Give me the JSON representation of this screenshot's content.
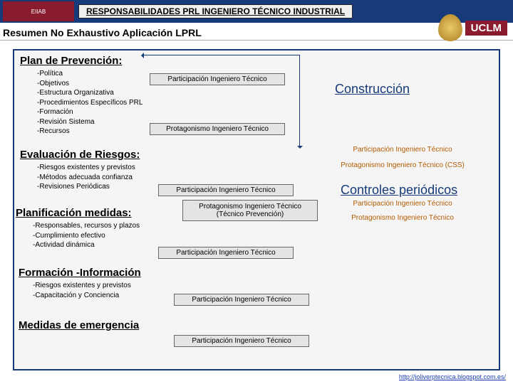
{
  "header": {
    "title": "RESPONSABILIDADES PRL INGENIERO TÉCNICO INDUSTRIAL",
    "logo_left": "EIIAB",
    "logo_right": "UCLM"
  },
  "subtitle": "Resumen No Exhaustivo Aplicación LPRL",
  "sections": {
    "plan": {
      "title": "Plan de Prevención:",
      "bullets": [
        "-Política",
        "-Objetivos",
        "-Estructura Organizativa",
        "-Procedimientos Específicos PRL",
        "-Formación",
        "-Revisión Sistema",
        "-Recursos"
      ]
    },
    "eval": {
      "title": "Evaluación de Riesgos:",
      "bullets": [
        "-Riesgos existentes y previstos",
        "-Métodos adecuada confianza",
        "-Revisiones Periódicas"
      ]
    },
    "planif": {
      "title": "Planificación medidas:",
      "bullets": [
        "-Responsables, recursos y plazos",
        "-Cumplimiento efectivo",
        "-Actividad dinámica"
      ]
    },
    "form": {
      "title": "Formación -Información",
      "bullets": [
        "-Riesgos existentes y previstos",
        "-Capacitación y Conciencia"
      ]
    },
    "emer": {
      "title": "Medidas de emergencia"
    }
  },
  "tags": {
    "part": "Participación Ingeniero Técnico",
    "prot": "Protagonismo Ingeniero Técnico",
    "prot_tp": "Protagonismo Ingeniero Técnico (Técnico Prevención)"
  },
  "right": {
    "construccion": "Construcción",
    "controles": "Controles periódicos",
    "part": "Participación Ingeniero Técnico",
    "prot_css": "Protagonismo Ingeniero Técnico (CSS)",
    "prot": "Protagonismo Ingeniero Técnico"
  },
  "footer": "http://joliverptecnica.blogspot.com.es/",
  "colors": {
    "primary": "#163a7a",
    "maroon": "#8a1b2e",
    "orange": "#b35b00",
    "tag_bg": "#e4e4e4",
    "box_bg": "#f5f5f5"
  }
}
